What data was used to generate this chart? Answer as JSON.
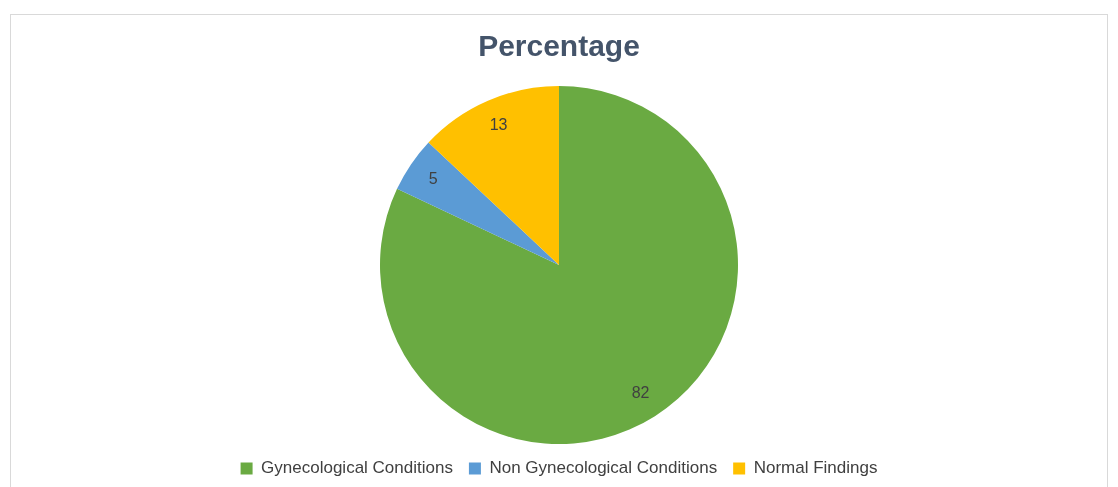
{
  "chart_data": {
    "type": "pie",
    "title": "Percentage",
    "categories": [
      "Gynecological Conditions",
      "Non Gynecological Conditions",
      "Normal Findings"
    ],
    "values": [
      82,
      5,
      13
    ],
    "colors": [
      "#6aaa42",
      "#5b9bd5",
      "#ffc000"
    ],
    "data_labels": true,
    "legend": "bottom"
  }
}
